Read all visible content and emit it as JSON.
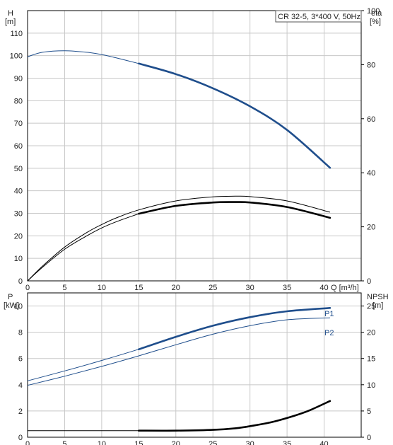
{
  "chart_data": [
    {
      "type": "line",
      "panel": "top",
      "title_box": "CR 32-5, 3*400 V, 50Hz",
      "ylabel_left_name": "H",
      "ylabel_left_unit": "[m]",
      "ylabel_right_name": "eta",
      "ylabel_right_unit": "[%]",
      "xlabel": "Q [m³/h]",
      "x_ticks": [
        "0",
        "5",
        "10",
        "15",
        "20",
        "25",
        "30",
        "35",
        "40"
      ],
      "y_left_ticks": [
        "0",
        "10",
        "20",
        "30",
        "40",
        "50",
        "60",
        "70",
        "80",
        "90",
        "100",
        "110"
      ],
      "y_right_ticks": [
        "0",
        "20",
        "40",
        "60",
        "80",
        "100"
      ],
      "xlim": [
        0,
        45
      ],
      "ylim_left": [
        0,
        120
      ],
      "ylim_right": [
        0,
        100
      ],
      "grid": true,
      "series": [
        {
          "axis": "left",
          "color": "#1f4e8c",
          "thin_x": [
            0,
            2,
            5,
            8,
            10,
            12,
            15
          ],
          "thin_y": [
            99.5,
            101.5,
            102.2,
            101.5,
            100.5,
            99.0,
            96.5
          ],
          "bold_x": [
            15,
            20,
            25,
            30,
            35,
            40.8
          ],
          "bold_y": [
            96.5,
            91.8,
            85.5,
            77.5,
            67.0,
            50.2
          ]
        },
        {
          "axis": "left",
          "color": "#000000",
          "thin_x": [
            0,
            2,
            5,
            8,
            10,
            12,
            15,
            20,
            25,
            28,
            30,
            35,
            40.8
          ],
          "thin_y": [
            0,
            6.5,
            15.0,
            21.5,
            25.0,
            28.0,
            31.5,
            35.5,
            37.3,
            37.6,
            37.4,
            35.5,
            30.5
          ]
        },
        {
          "axis": "left",
          "color": "#000000",
          "thin_x": [
            0,
            2,
            5,
            8,
            10,
            12,
            15
          ],
          "thin_y": [
            0,
            6.0,
            14.0,
            20.0,
            23.5,
            26.3,
            29.8
          ],
          "bold_x": [
            15,
            20,
            25,
            28,
            30,
            35,
            40.8
          ],
          "bold_y": [
            29.8,
            33.3,
            34.8,
            35.0,
            34.8,
            32.8,
            28.0
          ]
        }
      ]
    },
    {
      "type": "line",
      "panel": "bottom",
      "ylabel_left_name": "P",
      "ylabel_left_unit": "[kW]",
      "ylabel_right_name": "NPSH",
      "ylabel_right_unit": "[m]",
      "x_ticks": [
        "0",
        "5",
        "10",
        "15",
        "20",
        "25",
        "30",
        "35",
        "40"
      ],
      "y_left_ticks": [
        "0",
        "2",
        "4",
        "6",
        "8",
        "10"
      ],
      "y_right_ticks": [
        "0",
        "5",
        "10",
        "15",
        "20",
        "25"
      ],
      "xlim": [
        0,
        45
      ],
      "ylim_left": [
        0,
        11
      ],
      "ylim_right": [
        0,
        27.5
      ],
      "grid": true,
      "series": [
        {
          "name": "P1",
          "axis": "left",
          "color": "#1f4e8c",
          "thin_x": [
            0,
            5,
            10,
            15
          ],
          "thin_y": [
            4.3,
            5.05,
            5.85,
            6.7
          ],
          "bold_x": [
            15,
            20,
            25,
            30,
            35,
            40.8
          ],
          "bold_y": [
            6.7,
            7.65,
            8.5,
            9.15,
            9.6,
            9.85
          ]
        },
        {
          "name": "P2",
          "axis": "left",
          "color": "#1f4e8c",
          "thin_x": [
            0,
            5,
            10,
            15,
            20,
            25,
            30,
            35,
            40.8
          ],
          "thin_y": [
            3.95,
            4.65,
            5.4,
            6.2,
            7.05,
            7.85,
            8.5,
            8.95,
            9.1
          ]
        },
        {
          "axis": "right",
          "color": "#000000",
          "thin_x": [
            0,
            15
          ],
          "thin_y": [
            1.25,
            1.25
          ],
          "bold_x": [
            15,
            20,
            25,
            28,
            30,
            33,
            36,
            38,
            40.8
          ],
          "bold_y": [
            1.25,
            1.25,
            1.4,
            1.7,
            2.1,
            2.9,
            4.1,
            5.1,
            6.9
          ]
        }
      ]
    }
  ]
}
